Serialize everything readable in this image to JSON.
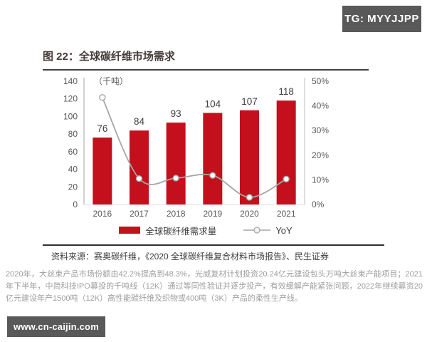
{
  "badges": {
    "tg": "TG: MYYJJPP",
    "site": "www.cn-caijin.com"
  },
  "figure": {
    "title": "图 22：全球碳纤维市场需求",
    "source": "资料来源：赛奥碳纤维，《2020 全球碳纤维复合材料市场报告》、民生证券"
  },
  "note": "2020年，大丝束产品市场份额由42.2%提高到48.3%，光威复材计划投资20.24亿元建设包头万吨大丝束产能项目；2021年下半年，中简科技IPO募投的千吨线（12K）通过等同性验证并逐步投产，有效缓解产能紧张问题，2022年继续募资20亿元建设年产1500吨（12K）高性能碳纤维及织物或400吨（3K）产品的柔性生产线。",
  "chart_data": {
    "type": "bar",
    "subtype": "bar+line combo, dual axis",
    "title": "全球碳纤维市场需求",
    "categories": [
      "2016",
      "2017",
      "2018",
      "2019",
      "2020",
      "2021"
    ],
    "series": [
      {
        "name": "全球碳纤维需求量",
        "type": "bar",
        "axis": "left",
        "color": "#c3101c",
        "values": [
          76,
          84,
          93,
          104,
          107,
          118
        ]
      },
      {
        "name": "YoY",
        "type": "line",
        "axis": "right",
        "color": "#a6a6a6",
        "unit": "%",
        "values": [
          43.4,
          10.5,
          10.7,
          11.8,
          2.9,
          10.3
        ]
      }
    ],
    "left_axis": {
      "label": "（千吨）",
      "min": 0,
      "max": 140,
      "ticks": [
        0,
        20,
        40,
        60,
        80,
        100,
        120,
        140
      ]
    },
    "right_axis": {
      "min": 0,
      "max": 50,
      "ticks": [
        0,
        10,
        20,
        30,
        40,
        50
      ],
      "tick_suffix": "%"
    },
    "legend_position": "bottom",
    "grid": false
  }
}
